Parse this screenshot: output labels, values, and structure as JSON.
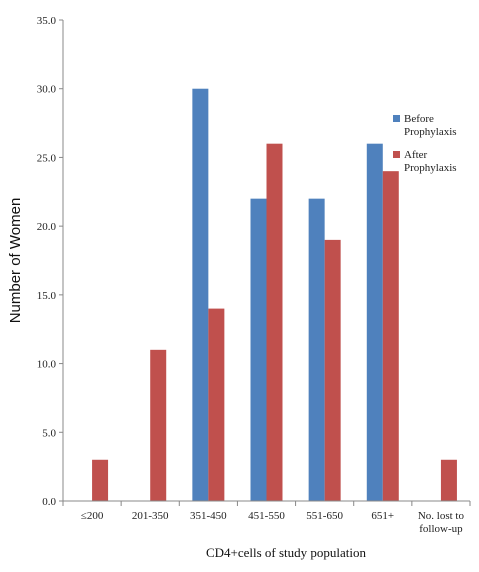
{
  "chart_data": {
    "type": "bar",
    "title": "",
    "xlabel": "CD4+cells of study population",
    "ylabel": "Number of Women",
    "ylim": [
      0,
      35
    ],
    "yticks": [
      "0.0",
      "5.0",
      "10.0",
      "15.0",
      "20.0",
      "25.0",
      "30.0",
      "35.0"
    ],
    "categories": [
      "≤200",
      "201-350",
      "351-450",
      "451-550",
      "551-650",
      "651+",
      "No. lost to follow-up"
    ],
    "series": [
      {
        "name": "Before Prophylaxis",
        "color": "#4F81BD",
        "values": [
          0,
          0,
          30,
          22,
          22,
          26,
          0
        ]
      },
      {
        "name": "After Prophylaxis",
        "color": "#C0504D",
        "values": [
          3,
          11,
          14,
          26,
          19,
          24,
          3
        ]
      }
    ],
    "grid": false,
    "legend_position": "right"
  }
}
